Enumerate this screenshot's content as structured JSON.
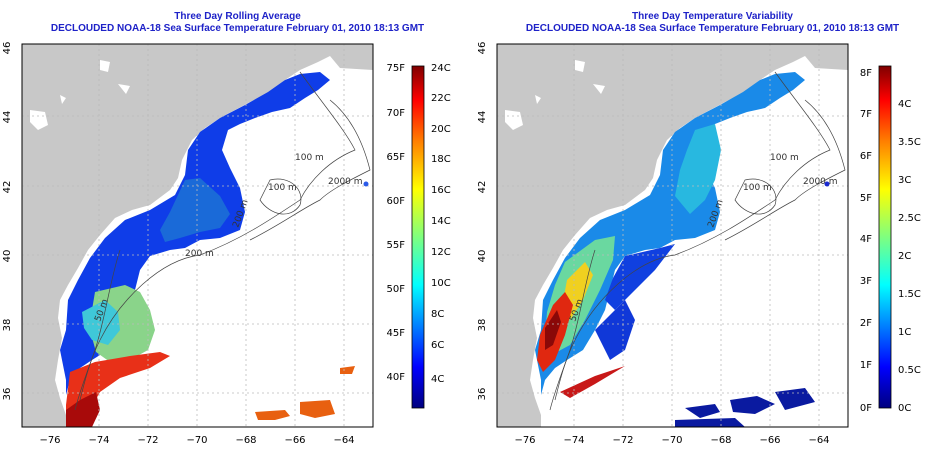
{
  "panels": [
    {
      "title": "Three Day Rolling Average",
      "subtitle": "DECLOUDED NOAA-18 Sea Surface Temperature February 01, 2010 18:13 GMT",
      "colorbar": {
        "left_labels": [
          "75F",
          "70F",
          "65F",
          "60F",
          "55F",
          "50F",
          "45F",
          "40F"
        ],
        "right_labels": [
          "24C",
          "22C",
          "20C",
          "18C",
          "16C",
          "14C",
          "12C",
          "10C",
          "8C",
          "6C",
          "4C"
        ]
      }
    },
    {
      "title": "Three Day Temperature Variability",
      "subtitle": "DECLOUDED NOAA-18 Sea Surface Temperature February 01, 2010 18:13 GMT",
      "colorbar": {
        "left_labels": [
          "8F",
          "7F",
          "6F",
          "5F",
          "4F",
          "3F",
          "2F",
          "1F",
          "0F"
        ],
        "right_labels": [
          "4C",
          "3.5C",
          "3C",
          "2.5C",
          "2C",
          "1.5C",
          "1C",
          "0.5C",
          "0C"
        ]
      }
    }
  ],
  "axes": {
    "x_ticks": [
      "−76",
      "−74",
      "−72",
      "−70",
      "−68",
      "−66",
      "−64"
    ],
    "y_ticks": [
      "46",
      "44",
      "42",
      "40",
      "38",
      "36"
    ],
    "lon_range": [
      -77,
      -63
    ],
    "lat_range": [
      35,
      46
    ]
  },
  "contour_labels": [
    "100 m",
    "2000 m",
    "100 m",
    "200 m",
    "200 m",
    "50 m"
  ],
  "colors": {
    "land": "#c8c8c8",
    "title": "#1e22c8",
    "colormap": [
      "#00007f",
      "#0000ff",
      "#007fff",
      "#00ffff",
      "#7fff7f",
      "#ffff00",
      "#ff7f00",
      "#ff0000",
      "#7f0000"
    ]
  }
}
